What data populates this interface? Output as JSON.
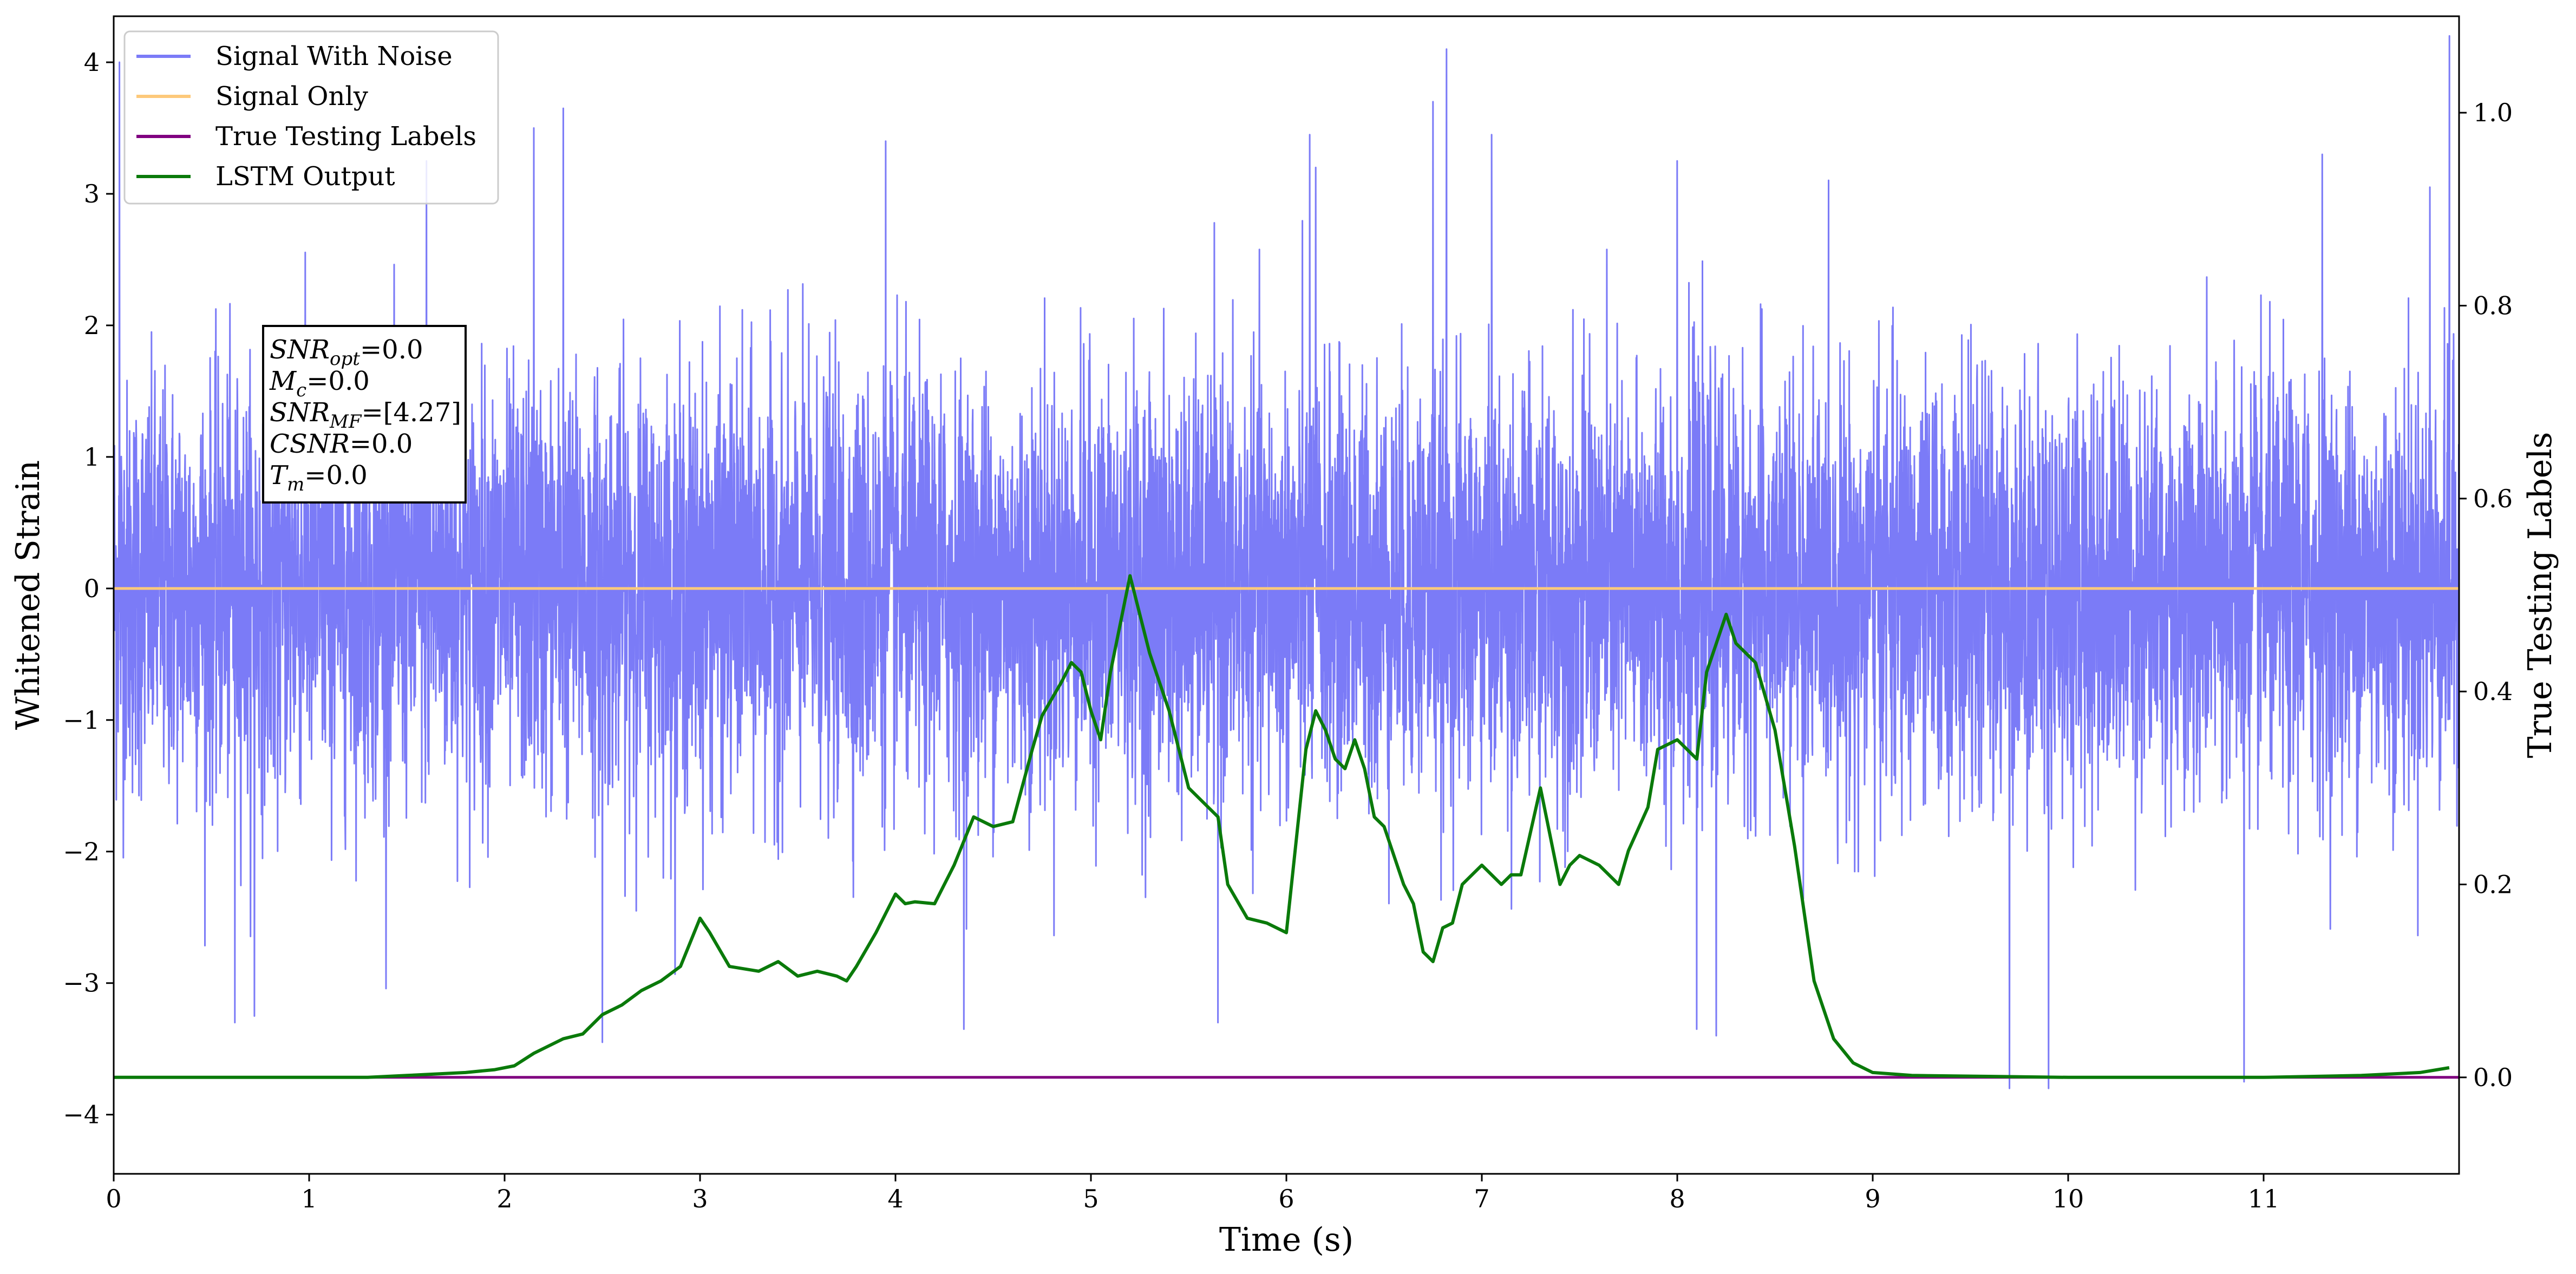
{
  "chart_data": {
    "type": "line",
    "xlabel": "Time (s)",
    "ylabel": "Whitened Strain",
    "y2label": "True Testing Labels",
    "xlim": [
      0,
      12
    ],
    "ylim": [
      -4.45,
      4.35
    ],
    "y2lim": [
      -0.1,
      1.1
    ],
    "x_ticks": [
      0,
      1,
      2,
      3,
      4,
      5,
      6,
      7,
      8,
      9,
      10,
      11
    ],
    "y_ticks": [
      -4,
      -3,
      -2,
      -1,
      0,
      1,
      2,
      3,
      4
    ],
    "y2_ticks": [
      0.0,
      0.2,
      0.4,
      0.6,
      0.8,
      1.0
    ],
    "grid": false,
    "legend_position": "upper-left",
    "annotation": {
      "lines": [
        {
          "var": "SNR",
          "sub": "opt",
          "rest": "=0.0"
        },
        {
          "var": "M",
          "sub": "c",
          "rest": "=0.0"
        },
        {
          "var": "SNR",
          "sub": "MF",
          "rest": "=[4.27]"
        },
        {
          "var": "CSNR",
          "sub": "",
          "rest": "=0.0"
        },
        {
          "var": "T",
          "sub": "m",
          "rest": "=0.0"
        }
      ]
    },
    "series": [
      {
        "name": "Signal With Noise",
        "color": "#7b7bf7",
        "axis": "left",
        "kind": "noise",
        "envelope_typical": [
          -1.6,
          1.7
        ],
        "peaks": [
          {
            "x": 0.03,
            "y": 4.0
          },
          {
            "x": 0.62,
            "y": -3.3
          },
          {
            "x": 0.72,
            "y": -3.25
          },
          {
            "x": 1.6,
            "y": 3.25
          },
          {
            "x": 2.15,
            "y": 3.5
          },
          {
            "x": 2.3,
            "y": 3.65
          },
          {
            "x": 2.5,
            "y": -3.45
          },
          {
            "x": 3.95,
            "y": 3.4
          },
          {
            "x": 4.35,
            "y": -3.35
          },
          {
            "x": 5.65,
            "y": -3.3
          },
          {
            "x": 6.12,
            "y": 3.45
          },
          {
            "x": 6.15,
            "y": 3.2
          },
          {
            "x": 6.75,
            "y": 3.7
          },
          {
            "x": 6.82,
            "y": 4.1
          },
          {
            "x": 7.05,
            "y": 3.45
          },
          {
            "x": 8.0,
            "y": 3.25
          },
          {
            "x": 8.1,
            "y": -3.35
          },
          {
            "x": 8.2,
            "y": -3.4
          },
          {
            "x": 9.7,
            "y": -3.8
          },
          {
            "x": 9.9,
            "y": -3.8
          },
          {
            "x": 10.9,
            "y": -3.75
          },
          {
            "x": 11.3,
            "y": 3.3
          },
          {
            "x": 11.85,
            "y": 3.05
          },
          {
            "x": 11.95,
            "y": 4.2
          }
        ]
      },
      {
        "name": "Signal Only",
        "color": "#fdc97a",
        "axis": "left",
        "x": [
          0,
          12
        ],
        "y": [
          0.0,
          0.0
        ]
      },
      {
        "name": "True Testing Labels",
        "color": "#800080",
        "axis": "right",
        "x": [
          0,
          12
        ],
        "y": [
          0.0,
          0.0
        ]
      },
      {
        "name": "LSTM Output",
        "color": "#0a7a0a",
        "axis": "right",
        "x": [
          0,
          0.5,
          1.0,
          1.3,
          1.5,
          1.8,
          1.95,
          2.05,
          2.15,
          2.3,
          2.4,
          2.5,
          2.6,
          2.7,
          2.8,
          2.9,
          3.0,
          3.05,
          3.15,
          3.3,
          3.4,
          3.5,
          3.6,
          3.7,
          3.75,
          3.8,
          3.9,
          4.0,
          4.05,
          4.1,
          4.2,
          4.3,
          4.4,
          4.5,
          4.6,
          4.7,
          4.75,
          4.85,
          4.9,
          4.95,
          5.0,
          5.05,
          5.1,
          5.2,
          5.3,
          5.4,
          5.5,
          5.65,
          5.7,
          5.8,
          5.9,
          6.0,
          6.1,
          6.15,
          6.2,
          6.25,
          6.3,
          6.35,
          6.4,
          6.45,
          6.5,
          6.6,
          6.65,
          6.7,
          6.75,
          6.8,
          6.85,
          6.9,
          7.0,
          7.1,
          7.15,
          7.2,
          7.3,
          7.4,
          7.45,
          7.5,
          7.6,
          7.7,
          7.75,
          7.85,
          7.9,
          8.0,
          8.1,
          8.15,
          8.25,
          8.3,
          8.4,
          8.5,
          8.6,
          8.7,
          8.8,
          8.9,
          9.0,
          9.2,
          10.0,
          11.0,
          11.5,
          11.8,
          11.95
        ],
        "y": [
          0.0,
          0.0,
          0.0,
          0.0,
          0.002,
          0.005,
          0.008,
          0.012,
          0.025,
          0.04,
          0.045,
          0.065,
          0.075,
          0.09,
          0.1,
          0.115,
          0.165,
          0.15,
          0.115,
          0.11,
          0.12,
          0.105,
          0.11,
          0.105,
          0.1,
          0.115,
          0.15,
          0.19,
          0.18,
          0.182,
          0.18,
          0.22,
          0.27,
          0.26,
          0.265,
          0.34,
          0.375,
          0.41,
          0.43,
          0.42,
          0.38,
          0.35,
          0.42,
          0.52,
          0.44,
          0.38,
          0.3,
          0.27,
          0.2,
          0.165,
          0.16,
          0.15,
          0.34,
          0.38,
          0.36,
          0.33,
          0.32,
          0.35,
          0.32,
          0.27,
          0.26,
          0.2,
          0.18,
          0.13,
          0.12,
          0.155,
          0.16,
          0.2,
          0.22,
          0.2,
          0.21,
          0.21,
          0.3,
          0.2,
          0.22,
          0.23,
          0.22,
          0.2,
          0.235,
          0.28,
          0.34,
          0.35,
          0.33,
          0.42,
          0.48,
          0.45,
          0.43,
          0.36,
          0.24,
          0.1,
          0.04,
          0.015,
          0.005,
          0.002,
          0.0,
          0.0,
          0.002,
          0.005,
          0.01
        ]
      }
    ]
  }
}
